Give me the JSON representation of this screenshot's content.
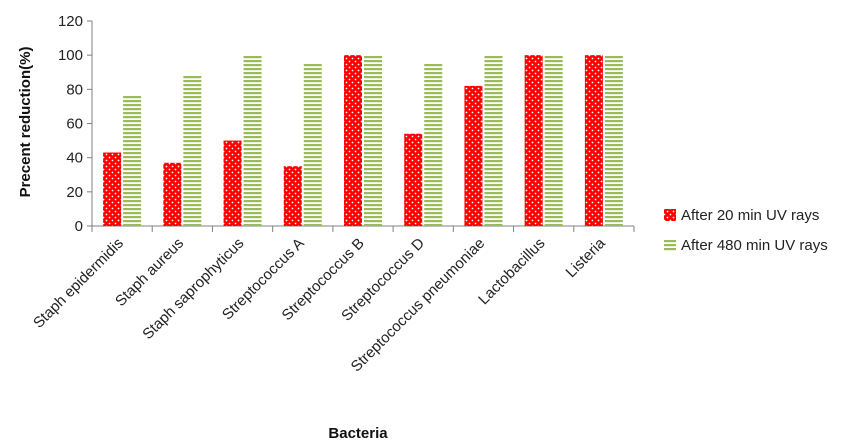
{
  "chart_data": {
    "type": "bar",
    "title": "",
    "xlabel": "Bacteria",
    "ylabel": "Precent reduction(%)",
    "ylim": [
      0,
      120
    ],
    "yticks": [
      0,
      20,
      40,
      60,
      80,
      100,
      120
    ],
    "grid": false,
    "legend_position": "right",
    "categories": [
      "Staph  epidermidis",
      "Staph   aureus",
      "Staph  saprophyticus",
      "Streptococcus A",
      "Streptococcus   B",
      "Streptococcus   D",
      "Streptococcus pneumoniae",
      "Lactobacillus",
      "Listeria"
    ],
    "series": [
      {
        "name": "After 20 min UV rays",
        "color": "#ff0000",
        "pattern": "dots",
        "values": [
          43,
          37,
          50,
          35,
          100,
          54,
          82,
          100,
          100
        ]
      },
      {
        "name": "After 480 min UV rays",
        "color": "#9bbb59",
        "pattern": "horizontal-stripes",
        "values": [
          77,
          88,
          100,
          95,
          100,
          95,
          100,
          100,
          100
        ]
      }
    ]
  }
}
